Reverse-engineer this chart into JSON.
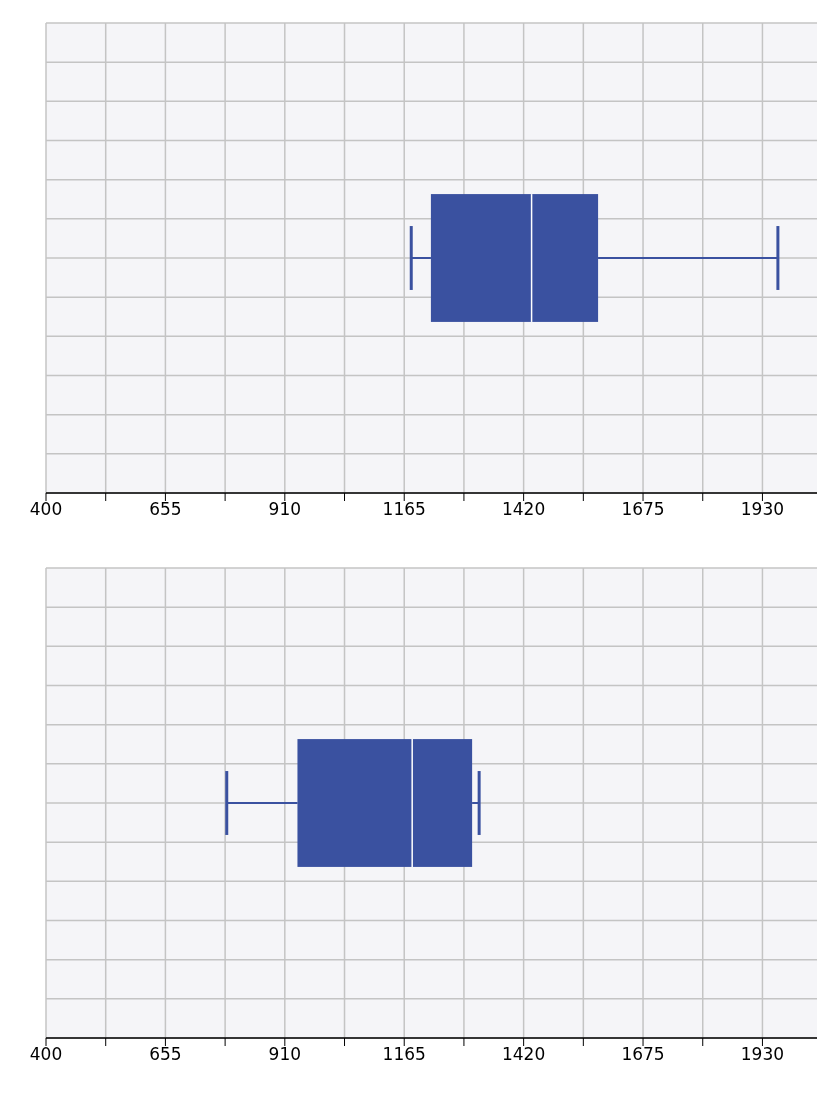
{
  "chart_data": [
    {
      "type": "box",
      "orientation": "horizontal",
      "categories": [
        null
      ],
      "color": "#3a51a0",
      "boxes": [
        {
          "low": 1180,
          "q1": 1222,
          "median": 1437,
          "q3": 1579,
          "high": 1963
        }
      ],
      "xlim": [
        400,
        2070
      ],
      "xticks": [
        400,
        {
          "value": 527.5,
          "label": null
        },
        655,
        {
          "value": 782.5,
          "label": null
        },
        910,
        {
          "value": 1037.5,
          "label": null
        },
        1165,
        {
          "value": 1292.5,
          "label": null
        },
        1420,
        {
          "value": 1547.5,
          "label": null
        },
        1675,
        {
          "value": 1802.5,
          "label": null
        },
        1930,
        {
          "value": 2057.5,
          "label": null
        }
      ],
      "grid": true,
      "tick_labels": "x"
    },
    {
      "type": "box",
      "orientation": "horizontal",
      "categories": [
        null
      ],
      "color": "#3a51a0",
      "boxes": [
        {
          "low": 786,
          "q1": 937,
          "median": 1182,
          "q3": 1310,
          "high": 1325
        }
      ],
      "xlim": [
        400,
        2070
      ],
      "xticks": [
        400,
        {
          "value": 527.5,
          "label": null
        },
        655,
        {
          "value": 782.5,
          "label": null
        },
        910,
        {
          "value": 1037.5,
          "label": null
        },
        1165,
        {
          "value": 1292.5,
          "label": null
        },
        1420,
        {
          "value": 1547.5,
          "label": null
        },
        1675,
        {
          "value": 1802.5,
          "label": null
        },
        1930,
        {
          "value": 2057.5,
          "label": null
        }
      ],
      "grid": true,
      "tick_labels": "x"
    }
  ]
}
